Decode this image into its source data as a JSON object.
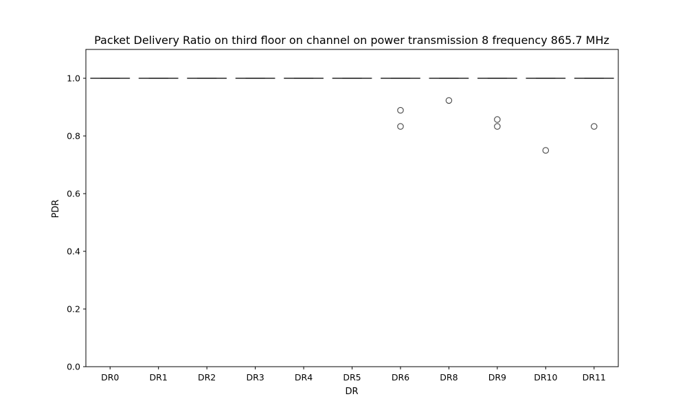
{
  "chart_data": {
    "type": "box",
    "title": "Packet Delivery Ratio on third floor on channel on power transmission 8 frequency 865.7 MHz",
    "xlabel": "DR",
    "ylabel": "PDR",
    "ylim": [
      0.0,
      1.1
    ],
    "yticks": [
      "0.0",
      "0.2",
      "0.4",
      "0.6",
      "0.8",
      "1.0"
    ],
    "categories": [
      "DR0",
      "DR1",
      "DR2",
      "DR3",
      "DR4",
      "DR5",
      "DR6",
      "DR8",
      "DR9",
      "DR10",
      "DR11"
    ],
    "boxes": [
      {
        "category": "DR0",
        "median": 1.0,
        "q1": 1.0,
        "q3": 1.0,
        "whisker_low": 1.0,
        "whisker_high": 1.0,
        "outliers": []
      },
      {
        "category": "DR1",
        "median": 1.0,
        "q1": 1.0,
        "q3": 1.0,
        "whisker_low": 1.0,
        "whisker_high": 1.0,
        "outliers": []
      },
      {
        "category": "DR2",
        "median": 1.0,
        "q1": 1.0,
        "q3": 1.0,
        "whisker_low": 1.0,
        "whisker_high": 1.0,
        "outliers": []
      },
      {
        "category": "DR3",
        "median": 1.0,
        "q1": 1.0,
        "q3": 1.0,
        "whisker_low": 1.0,
        "whisker_high": 1.0,
        "outliers": []
      },
      {
        "category": "DR4",
        "median": 1.0,
        "q1": 1.0,
        "q3": 1.0,
        "whisker_low": 1.0,
        "whisker_high": 1.0,
        "outliers": []
      },
      {
        "category": "DR5",
        "median": 1.0,
        "q1": 1.0,
        "q3": 1.0,
        "whisker_low": 1.0,
        "whisker_high": 1.0,
        "outliers": []
      },
      {
        "category": "DR6",
        "median": 1.0,
        "q1": 1.0,
        "q3": 1.0,
        "whisker_low": 1.0,
        "whisker_high": 1.0,
        "outliers": [
          0.889,
          0.833
        ]
      },
      {
        "category": "DR8",
        "median": 1.0,
        "q1": 1.0,
        "q3": 1.0,
        "whisker_low": 1.0,
        "whisker_high": 1.0,
        "outliers": [
          0.923
        ]
      },
      {
        "category": "DR9",
        "median": 1.0,
        "q1": 1.0,
        "q3": 1.0,
        "whisker_low": 1.0,
        "whisker_high": 1.0,
        "outliers": [
          0.857,
          0.833
        ]
      },
      {
        "category": "DR10",
        "median": 1.0,
        "q1": 1.0,
        "q3": 1.0,
        "whisker_low": 1.0,
        "whisker_high": 1.0,
        "outliers": [
          0.75
        ]
      },
      {
        "category": "DR11",
        "median": 1.0,
        "q1": 1.0,
        "q3": 1.0,
        "whisker_low": 1.0,
        "whisker_high": 1.0,
        "outliers": [
          0.833
        ]
      }
    ],
    "grid": false,
    "legend": "none",
    "colors": {
      "box": "#444444",
      "axis": "#000000"
    }
  }
}
